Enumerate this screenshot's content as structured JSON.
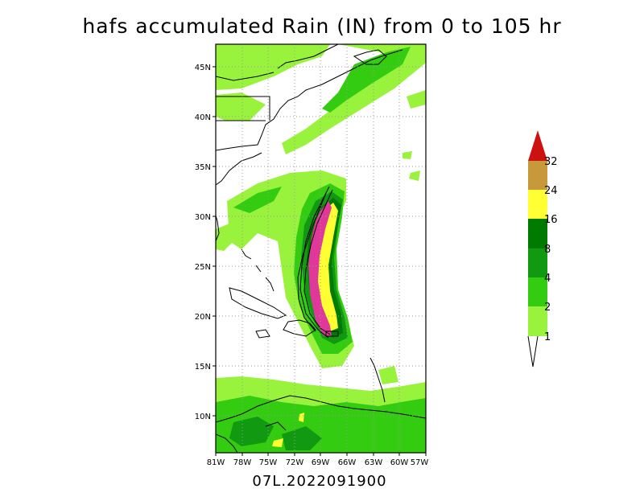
{
  "title": "hafs accumulated Rain (IN) from 0 to 105 hr",
  "footer_label": "07L.2022091900",
  "map": {
    "lon_range": [
      -81,
      -57
    ],
    "lat_range": [
      6,
      47
    ],
    "lon_tick_labels": [
      "81W",
      "78W",
      "75W",
      "72W",
      "69W",
      "66W",
      "63W",
      "60W",
      "57W"
    ],
    "lat_tick_labels": [
      "45N",
      "40N",
      "35N",
      "30N",
      "25N",
      "20N",
      "15N",
      "10N"
    ],
    "grid": "dotted"
  },
  "colorbar": {
    "levels": [
      "1",
      "2",
      "4",
      "8",
      "16",
      "24",
      "32"
    ],
    "colors": [
      "#99f23c",
      "#33cc11",
      "#119911",
      "#007a00",
      "#ffff33",
      "#c8993a",
      "#ee9933",
      "#cc1111"
    ]
  }
}
